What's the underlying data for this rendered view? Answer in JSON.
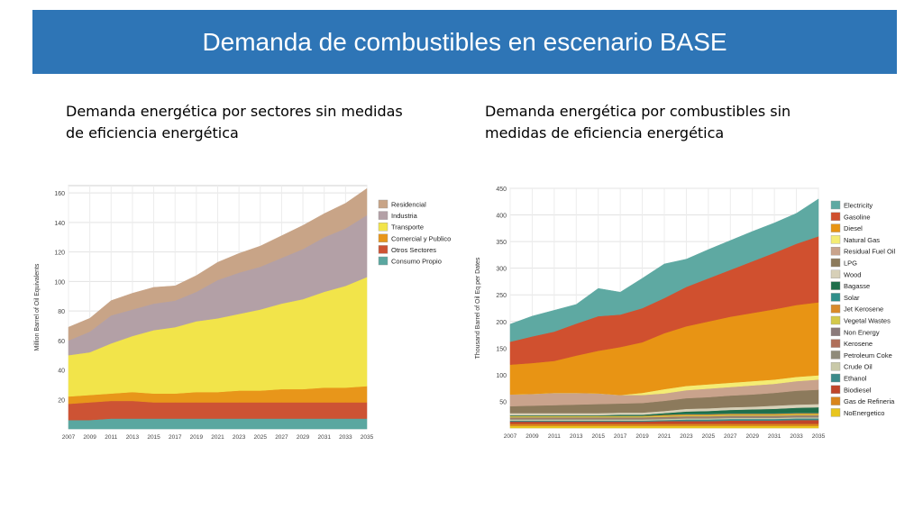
{
  "header": {
    "title": "Demanda de combustibles en escenario BASE"
  },
  "left_panel": {
    "subtitle": "Demanda energética por sectores sin medidas de eficiencia energética"
  },
  "right_panel": {
    "subtitle": "Demanda energética por combustibles sin medidas de eficiencia energética"
  },
  "chart_data": [
    {
      "type": "area",
      "stacked": true,
      "ylabel": "Million Barrel of Oil Equivalents",
      "xlabel": "",
      "ylim": [
        0,
        165
      ],
      "yticks": [
        20,
        40,
        60,
        80,
        100,
        120,
        140,
        160
      ],
      "x": [
        2007,
        2009,
        2011,
        2013,
        2015,
        2017,
        2019,
        2021,
        2023,
        2025,
        2027,
        2029,
        2031,
        2033,
        2035
      ],
      "grid": true,
      "legend_placement": "right",
      "series": [
        {
          "name": "Consumo Propio",
          "color": "#5aa7a0",
          "values": [
            6,
            6,
            7,
            7,
            7,
            7,
            7,
            7,
            7,
            7,
            7,
            7,
            7,
            7,
            7
          ]
        },
        {
          "name": "Otros Sectores",
          "color": "#cd5334",
          "values": [
            11,
            12,
            12,
            12,
            11,
            11,
            11,
            11,
            11,
            11,
            11,
            11,
            11,
            11,
            11
          ]
        },
        {
          "name": "Comercial y Publico",
          "color": "#e8961a",
          "values": [
            5,
            5,
            5,
            6,
            6,
            6,
            7,
            7,
            8,
            8,
            9,
            9,
            10,
            10,
            11
          ]
        },
        {
          "name": "Transporte",
          "color": "#f2e44a",
          "values": [
            28,
            29,
            34,
            38,
            43,
            45,
            48,
            50,
            52,
            55,
            58,
            61,
            65,
            69,
            74
          ]
        },
        {
          "name": "Industria",
          "color": "#b3a0a6",
          "values": [
            10,
            14,
            19,
            18,
            18,
            18,
            20,
            26,
            28,
            29,
            31,
            34,
            37,
            39,
            42
          ]
        },
        {
          "name": "Residencial",
          "color": "#c8a487",
          "values": [
            9,
            9,
            10,
            11,
            11,
            10,
            11,
            12,
            13,
            14,
            15,
            16,
            16,
            17,
            18
          ]
        }
      ]
    },
    {
      "type": "area",
      "stacked": true,
      "ylabel": "Thousand Barrel of Oil Eq per Dates",
      "xlabel": "",
      "ylim": [
        0,
        450
      ],
      "yticks": [
        50,
        100,
        150,
        200,
        250,
        300,
        350,
        400,
        450
      ],
      "x": [
        2007,
        2009,
        2011,
        2013,
        2015,
        2017,
        2019,
        2021,
        2023,
        2025,
        2027,
        2029,
        2031,
        2033,
        2035
      ],
      "grid": true,
      "legend_placement": "right",
      "series": [
        {
          "name": "NoEnergetico",
          "color": "#e8c51e",
          "values": [
            4,
            4,
            4,
            4,
            4,
            4,
            4,
            4,
            4,
            4,
            4,
            4,
            4,
            4,
            4
          ]
        },
        {
          "name": "Gas de Refineria",
          "color": "#d9851c",
          "values": [
            4,
            4,
            4,
            4,
            4,
            4,
            4,
            4,
            4,
            4,
            4,
            4,
            4,
            4,
            4
          ]
        },
        {
          "name": "Biodiesel",
          "color": "#c0452a",
          "values": [
            4,
            4,
            4,
            4,
            4,
            4,
            4,
            5,
            5,
            5,
            6,
            6,
            6,
            7,
            7
          ]
        },
        {
          "name": "Ethanol",
          "color": "#3b8a8a",
          "values": [
            2,
            2,
            2,
            2,
            2,
            2,
            2,
            2,
            3,
            3,
            3,
            3,
            3,
            3,
            3
          ]
        },
        {
          "name": "Crude Oil",
          "color": "#c9c9a8",
          "values": [
            2,
            2,
            2,
            2,
            2,
            2,
            2,
            2,
            2,
            2,
            2,
            2,
            2,
            2,
            2
          ]
        },
        {
          "name": "Petroleum Coke",
          "color": "#8f8b7a",
          "values": [
            2,
            2,
            2,
            2,
            2,
            2,
            2,
            2,
            2,
            2,
            2,
            2,
            2,
            2,
            2
          ]
        },
        {
          "name": "Kerosene",
          "color": "#b06f5a",
          "values": [
            1,
            1,
            1,
            1,
            1,
            1,
            1,
            1,
            1,
            1,
            1,
            1,
            1,
            1,
            1
          ]
        },
        {
          "name": "Non Energy",
          "color": "#8a7a7a",
          "values": [
            1,
            1,
            1,
            1,
            1,
            1,
            1,
            1,
            1,
            1,
            1,
            1,
            1,
            1,
            1
          ]
        },
        {
          "name": "Vegetal Wastes",
          "color": "#d4c94a",
          "values": [
            2,
            2,
            2,
            2,
            2,
            2,
            2,
            2,
            2,
            2,
            2,
            2,
            2,
            2,
            2
          ]
        },
        {
          "name": "Jet Kerosene",
          "color": "#d98a2a",
          "values": [
            1,
            1,
            1,
            1,
            1,
            1,
            1,
            2,
            2,
            2,
            2,
            2,
            2,
            2,
            2
          ]
        },
        {
          "name": "Solar",
          "color": "#2f8f8a",
          "values": [
            0,
            0,
            0,
            0,
            0,
            0,
            0,
            0,
            1,
            1,
            1,
            1,
            1,
            1,
            1
          ]
        },
        {
          "name": "Bagasse",
          "color": "#1e6e4a",
          "values": [
            1,
            1,
            1,
            1,
            1,
            2,
            2,
            3,
            4,
            5,
            6,
            7,
            8,
            9,
            10
          ]
        },
        {
          "name": "Wood",
          "color": "#d7d0b8",
          "values": [
            4,
            4,
            4,
            4,
            4,
            4,
            4,
            4,
            5,
            5,
            5,
            5,
            6,
            6,
            6
          ]
        },
        {
          "name": "LPG",
          "color": "#8c7a5c",
          "values": [
            13,
            14,
            15,
            16,
            17,
            17,
            18,
            19,
            20,
            21,
            22,
            23,
            24,
            26,
            27
          ]
        },
        {
          "name": "Residual Fuel Oil",
          "color": "#c9a38c",
          "values": [
            22,
            22,
            23,
            22,
            20,
            16,
            15,
            14,
            15,
            16,
            16,
            17,
            17,
            18,
            19
          ]
        },
        {
          "name": "Natural Gas",
          "color": "#f4ec74",
          "values": [
            0,
            0,
            0,
            0,
            0,
            0,
            4,
            8,
            8,
            8,
            8,
            8,
            8,
            8,
            8
          ]
        },
        {
          "name": "Diesel",
          "color": "#e89414",
          "values": [
            56,
            58,
            60,
            70,
            80,
            90,
            95,
            105,
            112,
            118,
            124,
            128,
            132,
            135,
            137
          ]
        },
        {
          "name": "Gasoline",
          "color": "#d0502f",
          "values": [
            43,
            50,
            55,
            60,
            65,
            61,
            64,
            66,
            74,
            81,
            88,
            97,
            106,
            115,
            124
          ]
        },
        {
          "name": "Electricity",
          "color": "#5ea9a2",
          "values": [
            33,
            38,
            40,
            36,
            52,
            42,
            56,
            64,
            52,
            54,
            55,
            56,
            56,
            57,
            70
          ]
        }
      ]
    }
  ]
}
